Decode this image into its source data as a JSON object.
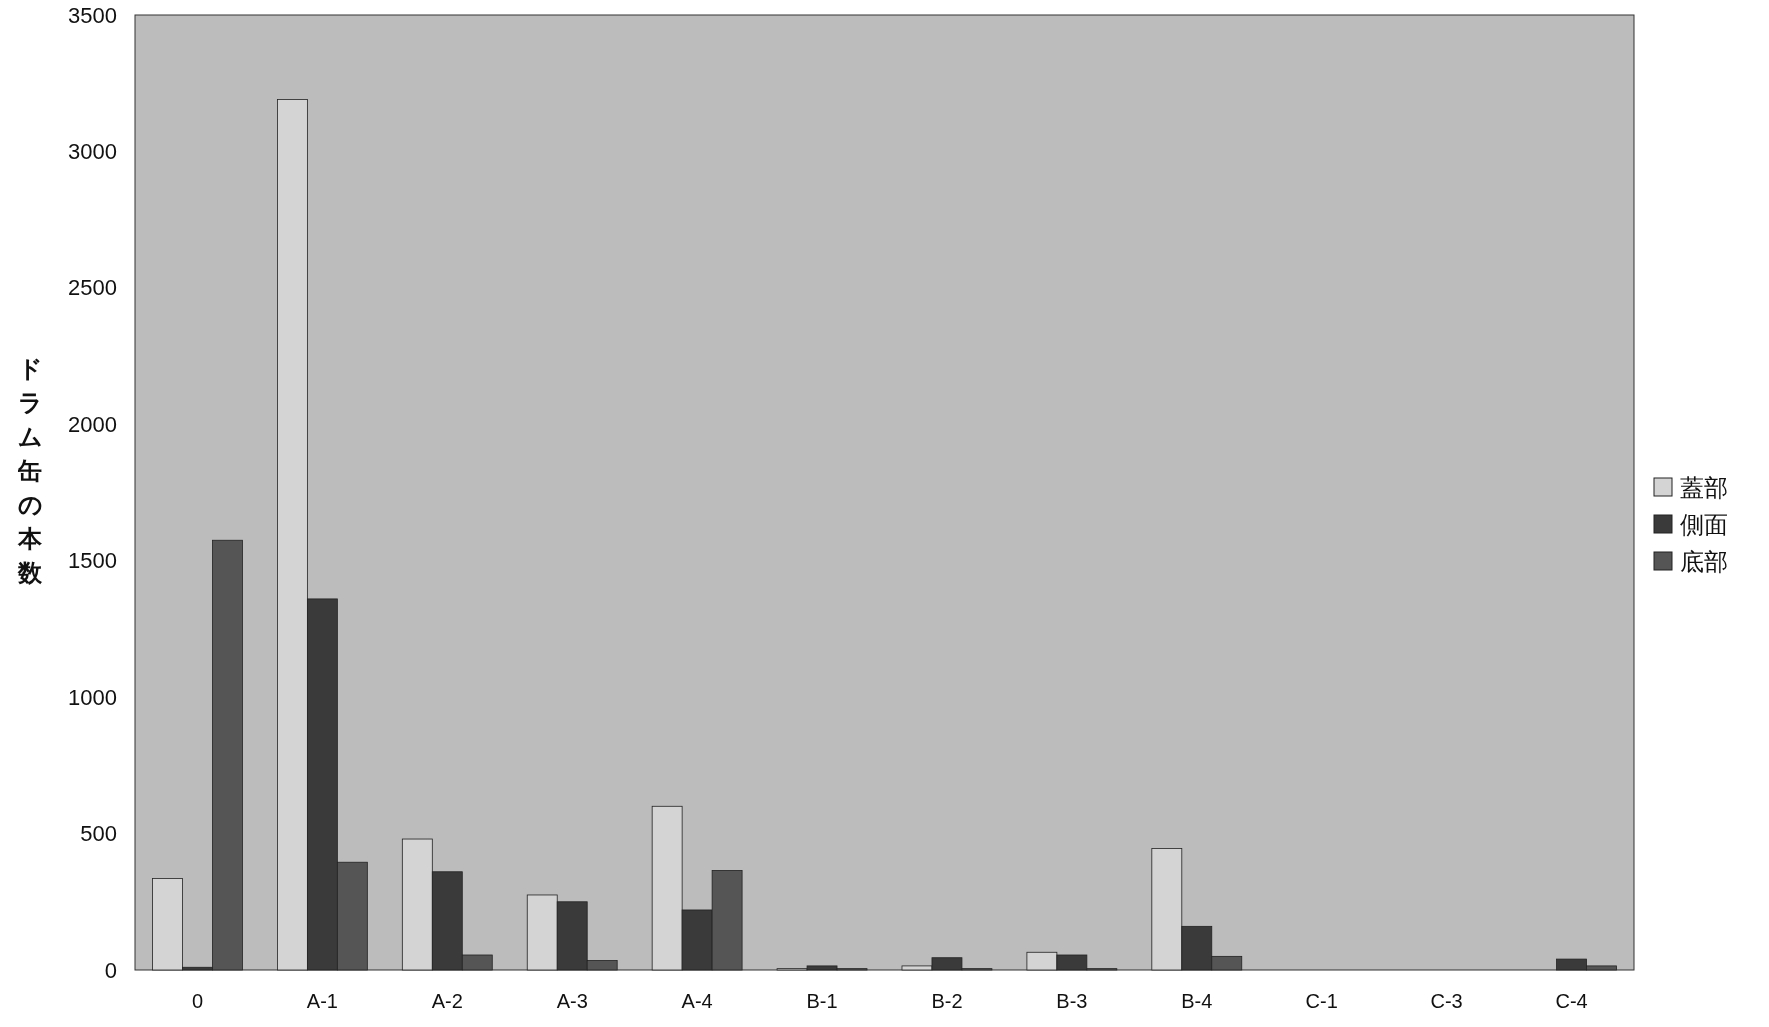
{
  "chart_data": {
    "type": "bar",
    "ylabel": "ドラム缶の本数",
    "categories": [
      "0",
      "A-1",
      "A-2",
      "A-3",
      "A-4",
      "B-1",
      "B-2",
      "B-3",
      "B-4",
      "C-1",
      "C-3",
      "C-4"
    ],
    "series": [
      {
        "name": "蓋部",
        "color": "#d4d4d4",
        "values": [
          335,
          3190,
          480,
          275,
          600,
          5,
          15,
          65,
          445,
          0,
          0,
          0
        ]
      },
      {
        "name": "側面",
        "color": "#3a3a3a",
        "values": [
          10,
          1360,
          360,
          250,
          220,
          15,
          45,
          55,
          160,
          0,
          0,
          40
        ]
      },
      {
        "name": "底部",
        "color": "#555555",
        "values": [
          1575,
          395,
          55,
          35,
          365,
          5,
          5,
          5,
          50,
          0,
          0,
          15
        ]
      }
    ],
    "ylim": [
      0,
      3500
    ],
    "yticks": [
      0,
      500,
      1000,
      1500,
      2000,
      2500,
      3000,
      3500
    ],
    "legend": "right",
    "grid": false
  }
}
